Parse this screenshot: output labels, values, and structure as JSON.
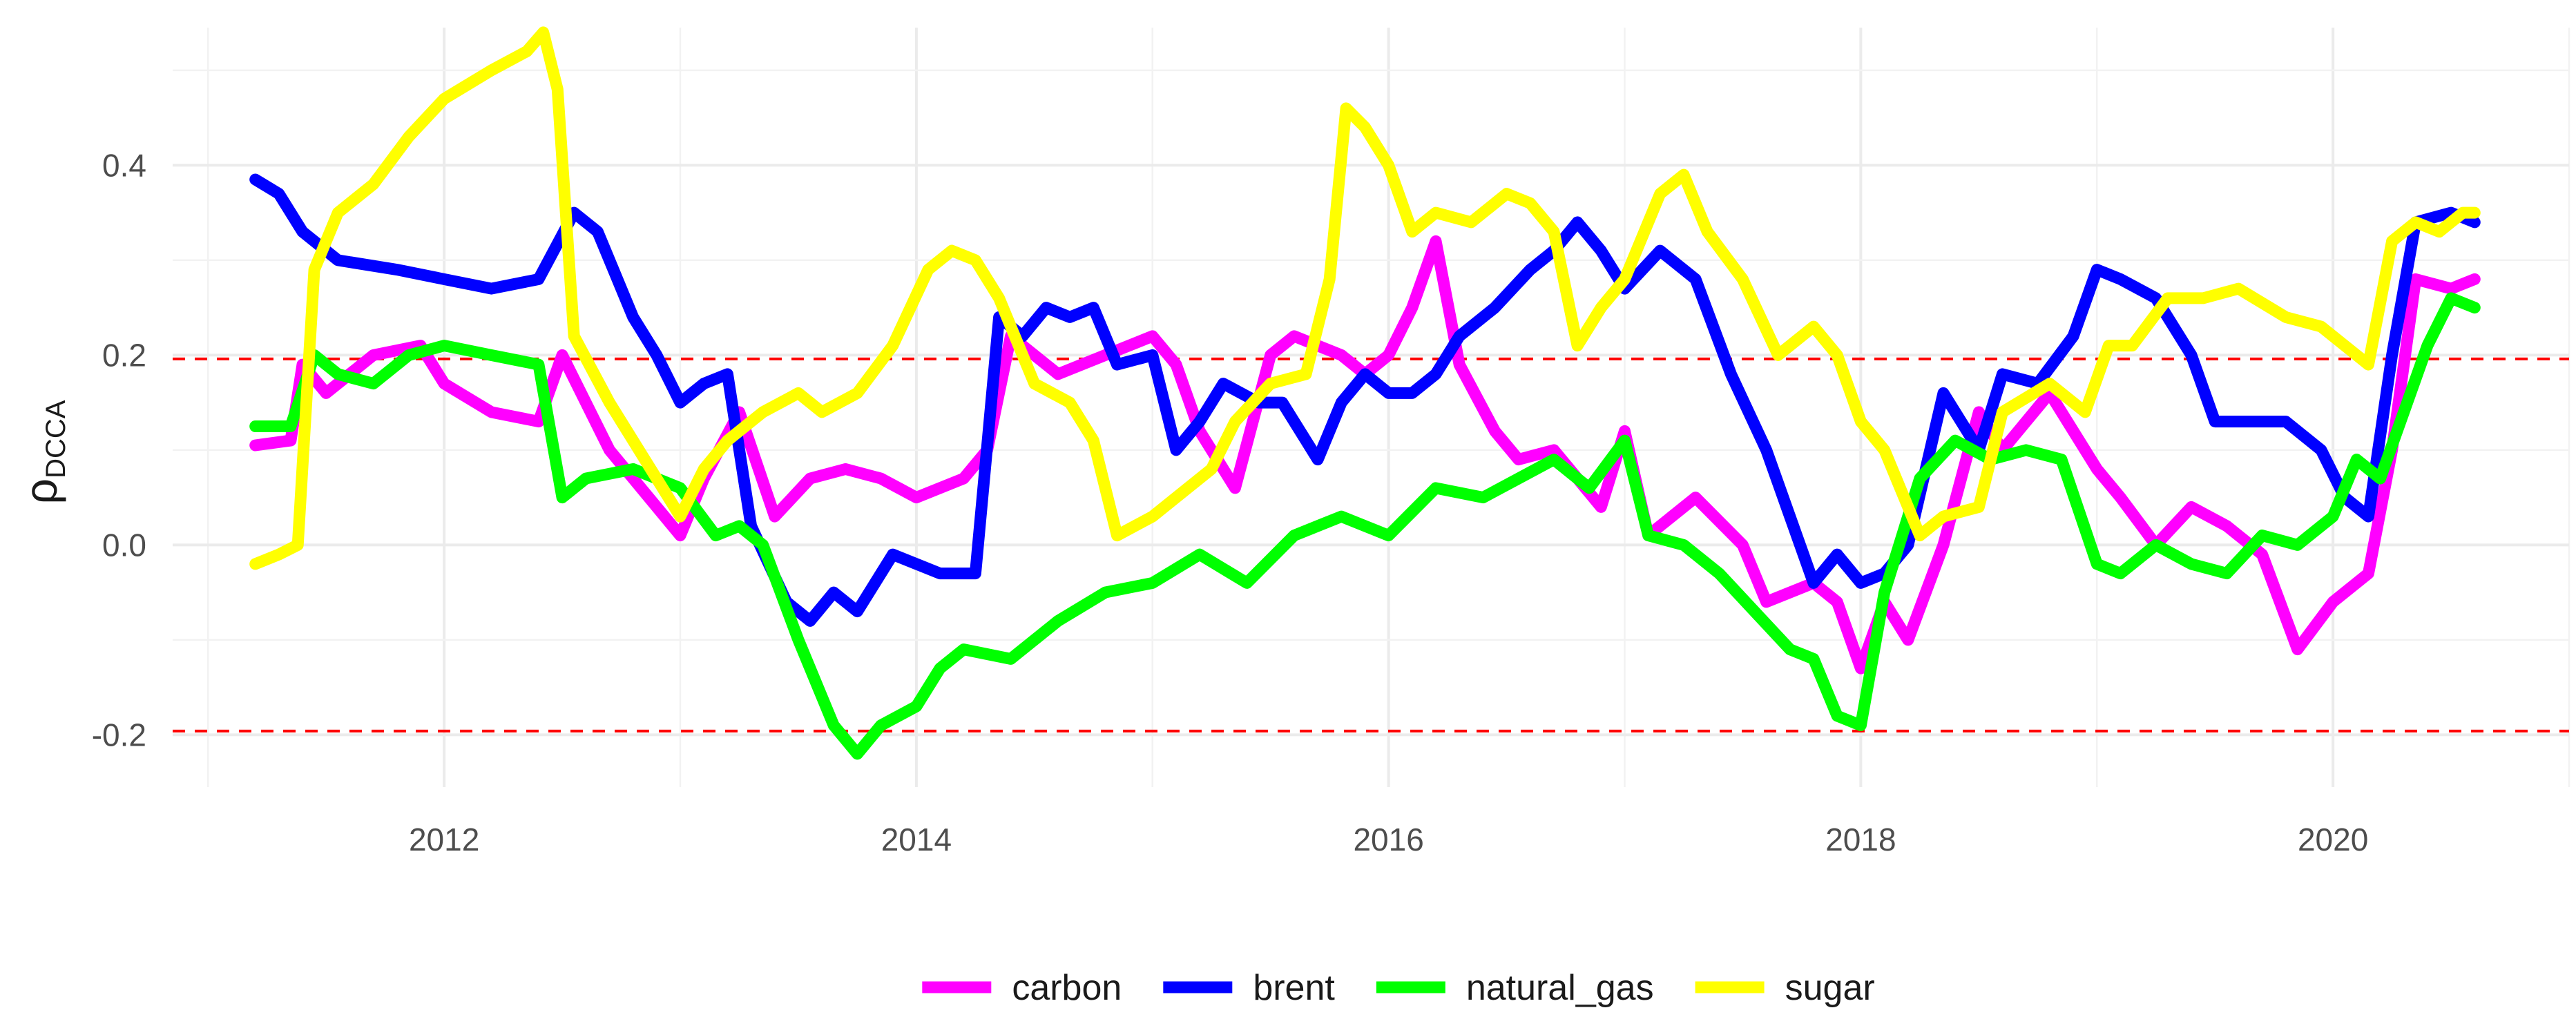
{
  "chart_data": {
    "type": "line",
    "title": "",
    "xlabel": "",
    "ylabel": "ρDCCA",
    "ylabel_main": "ρ",
    "ylabel_sub": "DCCA",
    "xlim": [
      2010.85,
      2021.0
    ],
    "ylim": [
      -0.255,
      0.545
    ],
    "x_ticks": [
      2012,
      2014,
      2016,
      2018,
      2020
    ],
    "x_tick_labels": [
      "2012",
      "2014",
      "2016",
      "2018",
      "2020"
    ],
    "y_ticks": [
      -0.2,
      0.0,
      0.2,
      0.4
    ],
    "y_tick_labels": [
      "-0.2",
      "0.0",
      "0.2",
      "0.4"
    ],
    "grid": true,
    "reference_lines": [
      0.196,
      -0.196
    ],
    "reference_line_color": "#ff0000",
    "legend_position": "bottom",
    "series": [
      {
        "name": "carbon",
        "color": "#ff00ff",
        "x": [
          2011.2,
          2011.35,
          2011.4,
          2011.5,
          2011.7,
          2011.9,
          2012.0,
          2012.2,
          2012.4,
          2012.5,
          2012.7,
          2012.8,
          2013.0,
          2013.1,
          2013.25,
          2013.4,
          2013.55,
          2013.7,
          2013.85,
          2014.0,
          2014.2,
          2014.3,
          2014.4,
          2014.6,
          2014.8,
          2015.0,
          2015.1,
          2015.2,
          2015.35,
          2015.5,
          2015.6,
          2015.8,
          2015.9,
          2016.0,
          2016.1,
          2016.2,
          2016.3,
          2016.45,
          2016.55,
          2016.7,
          2016.9,
          2017.0,
          2017.1,
          2017.3,
          2017.5,
          2017.6,
          2017.8,
          2017.9,
          2018.0,
          2018.1,
          2018.2,
          2018.35,
          2018.5,
          2018.6,
          2018.8,
          2019.0,
          2019.1,
          2019.25,
          2019.4,
          2019.55,
          2019.7,
          2019.85,
          2020.0,
          2020.15,
          2020.25,
          2020.35,
          2020.5,
          2020.6
        ],
        "y": [
          0.105,
          0.11,
          0.19,
          0.16,
          0.2,
          0.21,
          0.17,
          0.14,
          0.13,
          0.2,
          0.1,
          0.07,
          0.01,
          0.07,
          0.14,
          0.03,
          0.07,
          0.08,
          0.07,
          0.05,
          0.07,
          0.1,
          0.22,
          0.18,
          0.2,
          0.22,
          0.19,
          0.12,
          0.06,
          0.2,
          0.22,
          0.2,
          0.18,
          0.2,
          0.25,
          0.32,
          0.19,
          0.12,
          0.09,
          0.1,
          0.04,
          0.12,
          0.01,
          0.05,
          0.0,
          -0.06,
          -0.04,
          -0.06,
          -0.13,
          -0.06,
          -0.1,
          0.0,
          0.14,
          0.1,
          0.16,
          0.08,
          0.05,
          0.0,
          0.04,
          0.02,
          -0.01,
          -0.11,
          -0.06,
          -0.03,
          0.1,
          0.28,
          0.27,
          0.28
        ]
      },
      {
        "name": "brent",
        "color": "#0000ff",
        "x": [
          2011.2,
          2011.3,
          2011.4,
          2011.55,
          2011.8,
          2012.0,
          2012.2,
          2012.4,
          2012.55,
          2012.65,
          2012.8,
          2012.9,
          2013.0,
          2013.1,
          2013.2,
          2013.3,
          2013.45,
          2013.55,
          2013.65,
          2013.75,
          2013.9,
          2014.0,
          2014.1,
          2014.25,
          2014.35,
          2014.45,
          2014.55,
          2014.65,
          2014.75,
          2014.85,
          2015.0,
          2015.1,
          2015.2,
          2015.3,
          2015.45,
          2015.55,
          2015.7,
          2015.8,
          2015.9,
          2016.0,
          2016.1,
          2016.2,
          2016.3,
          2016.45,
          2016.6,
          2016.7,
          2016.8,
          2016.9,
          2017.0,
          2017.15,
          2017.3,
          2017.45,
          2017.6,
          2017.7,
          2017.8,
          2017.9,
          2018.0,
          2018.1,
          2018.2,
          2018.35,
          2018.5,
          2018.6,
          2018.75,
          2018.9,
          2019.0,
          2019.1,
          2019.25,
          2019.4,
          2019.5,
          2019.6,
          2019.8,
          2019.95,
          2020.05,
          2020.15,
          2020.25,
          2020.35,
          2020.5,
          2020.6
        ],
        "y": [
          0.385,
          0.37,
          0.33,
          0.3,
          0.29,
          0.28,
          0.27,
          0.28,
          0.35,
          0.33,
          0.24,
          0.2,
          0.15,
          0.17,
          0.18,
          0.02,
          -0.06,
          -0.08,
          -0.05,
          -0.07,
          -0.01,
          -0.02,
          -0.03,
          -0.03,
          0.24,
          0.22,
          0.25,
          0.24,
          0.25,
          0.19,
          0.2,
          0.1,
          0.13,
          0.17,
          0.15,
          0.15,
          0.09,
          0.15,
          0.18,
          0.16,
          0.16,
          0.18,
          0.22,
          0.25,
          0.29,
          0.31,
          0.34,
          0.31,
          0.27,
          0.31,
          0.28,
          0.18,
          0.1,
          0.03,
          -0.04,
          -0.01,
          -0.04,
          -0.03,
          0.0,
          0.16,
          0.1,
          0.18,
          0.17,
          0.22,
          0.29,
          0.28,
          0.26,
          0.2,
          0.13,
          0.13,
          0.13,
          0.1,
          0.05,
          0.03,
          0.2,
          0.34,
          0.35,
          0.34
        ]
      },
      {
        "name": "natural_gas",
        "color": "#00ff00",
        "x": [
          2011.2,
          2011.35,
          2011.45,
          2011.55,
          2011.7,
          2011.85,
          2012.0,
          2012.2,
          2012.4,
          2012.5,
          2012.6,
          2012.8,
          2013.0,
          2013.15,
          2013.25,
          2013.35,
          2013.5,
          2013.65,
          2013.75,
          2013.85,
          2014.0,
          2014.1,
          2014.2,
          2014.4,
          2014.6,
          2014.8,
          2015.0,
          2015.2,
          2015.4,
          2015.6,
          2015.8,
          2016.0,
          2016.2,
          2016.4,
          2016.55,
          2016.7,
          2016.85,
          2017.0,
          2017.1,
          2017.25,
          2017.4,
          2017.55,
          2017.7,
          2017.8,
          2017.9,
          2018.0,
          2018.1,
          2018.25,
          2018.4,
          2018.55,
          2018.7,
          2018.85,
          2019.0,
          2019.1,
          2019.25,
          2019.4,
          2019.55,
          2019.7,
          2019.85,
          2020.0,
          2020.1,
          2020.2,
          2020.3,
          2020.4,
          2020.5,
          2020.6
        ],
        "y": [
          0.125,
          0.125,
          0.2,
          0.18,
          0.17,
          0.2,
          0.21,
          0.2,
          0.19,
          0.05,
          0.07,
          0.08,
          0.06,
          0.01,
          0.02,
          0.0,
          -0.1,
          -0.19,
          -0.22,
          -0.19,
          -0.17,
          -0.13,
          -0.11,
          -0.12,
          -0.08,
          -0.05,
          -0.04,
          -0.01,
          -0.04,
          0.01,
          0.03,
          0.01,
          0.06,
          0.05,
          0.07,
          0.09,
          0.06,
          0.11,
          0.01,
          0.0,
          -0.03,
          -0.07,
          -0.11,
          -0.12,
          -0.18,
          -0.19,
          -0.05,
          0.07,
          0.11,
          0.09,
          0.1,
          0.09,
          -0.02,
          -0.03,
          0.0,
          -0.02,
          -0.03,
          0.01,
          0.0,
          0.03,
          0.09,
          0.07,
          0.14,
          0.21,
          0.26,
          0.25
        ]
      },
      {
        "name": "sugar",
        "color": "#ffff00",
        "x": [
          2011.2,
          2011.3,
          2011.38,
          2011.45,
          2011.55,
          2011.7,
          2011.85,
          2012.0,
          2012.2,
          2012.35,
          2012.42,
          2012.48,
          2012.55,
          2012.7,
          2012.85,
          2013.0,
          2013.1,
          2013.2,
          2013.35,
          2013.5,
          2013.6,
          2013.75,
          2013.9,
          2014.05,
          2014.15,
          2014.25,
          2014.35,
          2014.5,
          2014.65,
          2014.75,
          2014.85,
          2015.0,
          2015.15,
          2015.25,
          2015.35,
          2015.5,
          2015.65,
          2015.75,
          2015.82,
          2015.9,
          2016.0,
          2016.1,
          2016.2,
          2016.35,
          2016.5,
          2016.6,
          2016.7,
          2016.8,
          2016.9,
          2017.0,
          2017.15,
          2017.25,
          2017.35,
          2017.5,
          2017.65,
          2017.8,
          2017.9,
          2018.0,
          2018.1,
          2018.25,
          2018.35,
          2018.5,
          2018.6,
          2018.8,
          2018.95,
          2019.05,
          2019.15,
          2019.3,
          2019.45,
          2019.6,
          2019.8,
          2019.95,
          2020.05,
          2020.15,
          2020.25,
          2020.35,
          2020.45,
          2020.55,
          2020.6
        ],
        "y": [
          -0.02,
          -0.01,
          0.0,
          0.29,
          0.35,
          0.38,
          0.43,
          0.47,
          0.5,
          0.52,
          0.54,
          0.48,
          0.22,
          0.15,
          0.09,
          0.03,
          0.08,
          0.11,
          0.14,
          0.16,
          0.14,
          0.16,
          0.21,
          0.29,
          0.31,
          0.3,
          0.26,
          0.17,
          0.15,
          0.11,
          0.01,
          0.03,
          0.06,
          0.08,
          0.13,
          0.17,
          0.18,
          0.28,
          0.46,
          0.44,
          0.4,
          0.33,
          0.35,
          0.34,
          0.37,
          0.36,
          0.33,
          0.21,
          0.25,
          0.28,
          0.37,
          0.39,
          0.33,
          0.28,
          0.2,
          0.23,
          0.2,
          0.13,
          0.1,
          0.01,
          0.03,
          0.04,
          0.14,
          0.17,
          0.14,
          0.21,
          0.21,
          0.26,
          0.26,
          0.27,
          0.24,
          0.23,
          0.21,
          0.19,
          0.32,
          0.34,
          0.33,
          0.35,
          0.35
        ]
      }
    ]
  }
}
